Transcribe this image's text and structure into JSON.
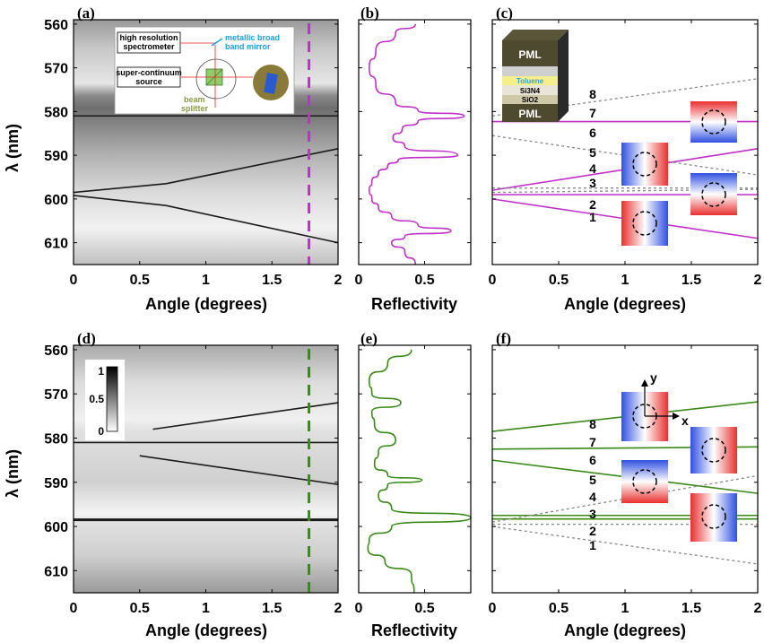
{
  "colors": {
    "purple": "#c030c8",
    "green": "#3a8a1a",
    "gray": "#8a8a8a"
  },
  "panels": {
    "a": {
      "label": "(a)",
      "xlabel": "Angle (degrees)",
      "ylabel": "λ (nm)"
    },
    "b": {
      "label": "(b)",
      "xlabel": "Reflectivity"
    },
    "c": {
      "label": "(c)",
      "xlabel": "Angle (degrees)"
    },
    "d": {
      "label": "(d)",
      "xlabel": "Angle (degrees)",
      "ylabel": "λ (nm)"
    },
    "e": {
      "label": "(e)",
      "xlabel": "Reflectivity"
    },
    "f": {
      "label": "(f)",
      "xlabel": "Angle (degrees)"
    }
  },
  "inset_a": {
    "spectrometer": [
      "high resolution",
      "spectrometer"
    ],
    "mirror": [
      "metallic broad",
      "band mirror"
    ],
    "source": [
      "super-continuum",
      "source"
    ],
    "splitter": [
      "beam",
      "splitter"
    ]
  },
  "stack_c": [
    "PML",
    "Toluene",
    "Si3N4",
    "SiO2",
    "PML"
  ],
  "colorbar_d": {
    "max": "1",
    "mid": "0.5",
    "min": "0"
  },
  "axes_f": {
    "y": "y",
    "x": "x"
  },
  "chart_data": [
    {
      "type": "heatmap",
      "panel": "a",
      "xlabel": "Angle (degrees)",
      "ylabel": "λ (nm)",
      "xlim": [
        0,
        2
      ],
      "ylim": [
        615,
        559
      ],
      "xticks": [
        "0",
        "0.5",
        "1",
        "1.5",
        "2"
      ],
      "yticks": [
        "560",
        "570",
        "580",
        "590",
        "600",
        "610"
      ],
      "cut_angle": 1.78,
      "dark_lines": [
        {
          "x": [
            0,
            2
          ],
          "y": [
            581,
            581
          ]
        },
        {
          "x": [
            0,
            0.7,
            2
          ],
          "y": [
            598.5,
            596.5,
            588.5
          ]
        },
        {
          "x": [
            0,
            0.7,
            2
          ],
          "y": [
            599.2,
            601.5,
            610
          ]
        }
      ]
    },
    {
      "type": "line",
      "panel": "b",
      "xlabel": "Reflectivity",
      "xlim": [
        0,
        0.85
      ],
      "ylim": [
        615,
        559
      ],
      "xticks": [
        "0",
        "0.5"
      ],
      "series": [
        {
          "values": [
            [
              0.43,
              560
            ],
            [
              0.28,
              562
            ],
            [
              0.13,
              566
            ],
            [
              0.08,
              570
            ],
            [
              0.13,
              574
            ],
            [
              0.28,
              578
            ],
            [
              0.45,
              579.8
            ],
            [
              0.8,
              581
            ],
            [
              0.45,
              582.2
            ],
            [
              0.33,
              584
            ],
            [
              0.26,
              586
            ],
            [
              0.35,
              588
            ],
            [
              0.75,
              590
            ],
            [
              0.3,
              591
            ],
            [
              0.22,
              592.5
            ],
            [
              0.15,
              594
            ],
            [
              0.1,
              596
            ],
            [
              0.08,
              598
            ],
            [
              0.1,
              600
            ],
            [
              0.15,
              602
            ],
            [
              0.25,
              604
            ],
            [
              0.45,
              606
            ],
            [
              0.7,
              607.3
            ],
            [
              0.35,
              608.5
            ],
            [
              0.25,
              610
            ],
            [
              0.35,
              612
            ],
            [
              0.43,
              615
            ]
          ]
        }
      ]
    },
    {
      "type": "line",
      "panel": "c",
      "xlabel": "Angle (degrees)",
      "xlim": [
        0,
        2
      ],
      "ylim": [
        615,
        559
      ],
      "xticks": [
        "0",
        "0.5",
        "1",
        "1.5",
        "2"
      ],
      "mode_labels": [
        "1",
        "2",
        "3",
        "4",
        "5",
        "6",
        "7",
        "8"
      ],
      "series": [
        {
          "style": "solid",
          "values": [
            [
              0,
              582.3
            ],
            [
              2,
              582.3
            ]
          ]
        },
        {
          "style": "solid",
          "values": [
            [
              0,
              598
            ],
            [
              2,
              588.5
            ]
          ]
        },
        {
          "style": "solid",
          "values": [
            [
              0,
              599
            ],
            [
              2,
              599
            ]
          ]
        },
        {
          "style": "solid",
          "values": [
            [
              0,
              600
            ],
            [
              2,
              609
            ]
          ]
        },
        {
          "style": "dashed",
          "values": [
            [
              0,
              581
            ],
            [
              2,
              572.5
            ]
          ]
        },
        {
          "style": "dashed",
          "values": [
            [
              0,
              585.5
            ],
            [
              2,
              594.5
            ]
          ]
        },
        {
          "style": "dashed",
          "values": [
            [
              0,
              597.5
            ],
            [
              2,
              597.5
            ]
          ]
        },
        {
          "style": "dashed",
          "values": [
            [
              0,
              598.5
            ],
            [
              2,
              597.8
            ]
          ]
        }
      ]
    },
    {
      "type": "heatmap",
      "panel": "d",
      "xlabel": "Angle (degrees)",
      "ylabel": "λ (nm)",
      "xlim": [
        0,
        2
      ],
      "ylim": [
        615,
        559
      ],
      "xticks": [
        "0",
        "0.5",
        "1",
        "1.5",
        "2"
      ],
      "yticks": [
        "560",
        "570",
        "580",
        "590",
        "600",
        "610"
      ],
      "cut_angle": 1.78,
      "dark_lines": [
        {
          "x": [
            0,
            2
          ],
          "y": [
            581,
            581
          ]
        },
        {
          "x": [
            0.6,
            2
          ],
          "y": [
            578,
            572
          ]
        },
        {
          "x": [
            0.5,
            2
          ],
          "y": [
            584,
            590.5
          ]
        },
        {
          "x": [
            0,
            2
          ],
          "y": [
            598.5,
            598.5
          ]
        }
      ]
    },
    {
      "type": "line",
      "panel": "e",
      "xlabel": "Reflectivity",
      "xlim": [
        0,
        0.85
      ],
      "ylim": [
        615,
        559
      ],
      "xticks": [
        "0",
        "0.5"
      ],
      "series": [
        {
          "values": [
            [
              0.4,
              560
            ],
            [
              0.22,
              563
            ],
            [
              0.08,
              567
            ],
            [
              0.1,
              570
            ],
            [
              0.32,
              572
            ],
            [
              0.1,
              574
            ],
            [
              0.12,
              577
            ],
            [
              0.28,
              580.5
            ],
            [
              0.15,
              583
            ],
            [
              0.12,
              586
            ],
            [
              0.22,
              588.5
            ],
            [
              0.48,
              589.5
            ],
            [
              0.22,
              590.5
            ],
            [
              0.15,
              593
            ],
            [
              0.25,
              596
            ],
            [
              0.85,
              598
            ],
            [
              0.25,
              600
            ],
            [
              0.08,
              603
            ],
            [
              0.07,
              605
            ],
            [
              0.2,
              608
            ],
            [
              0.4,
              611
            ],
            [
              0.42,
              615
            ]
          ]
        }
      ]
    },
    {
      "type": "line",
      "panel": "f",
      "xlabel": "Angle (degrees)",
      "xlim": [
        0,
        2
      ],
      "ylim": [
        615,
        559
      ],
      "xticks": [
        "0",
        "0.5",
        "1",
        "1.5",
        "2"
      ],
      "mode_labels": [
        "1",
        "2",
        "3",
        "4",
        "5",
        "6",
        "7",
        "8"
      ],
      "series": [
        {
          "style": "solid",
          "values": [
            [
              0,
              578.5
            ],
            [
              2,
              571.8
            ]
          ]
        },
        {
          "style": "solid",
          "values": [
            [
              0,
              582.5
            ],
            [
              2,
              582
            ]
          ]
        },
        {
          "style": "solid",
          "values": [
            [
              0,
              585
            ],
            [
              2,
              592.5
            ]
          ]
        },
        {
          "style": "solid",
          "values": [
            [
              0,
              597.5
            ],
            [
              2,
              597.5
            ]
          ]
        },
        {
          "style": "solid",
          "values": [
            [
              0,
              598.3
            ],
            [
              2,
              598.3
            ]
          ]
        },
        {
          "style": "dashed",
          "values": [
            [
              0,
              599
            ],
            [
              2,
              588.5
            ]
          ]
        },
        {
          "style": "dashed",
          "values": [
            [
              0,
              599.5
            ],
            [
              2,
              599.5
            ]
          ]
        },
        {
          "style": "dashed",
          "values": [
            [
              0,
              600
            ],
            [
              2,
              608.5
            ]
          ]
        }
      ]
    }
  ]
}
